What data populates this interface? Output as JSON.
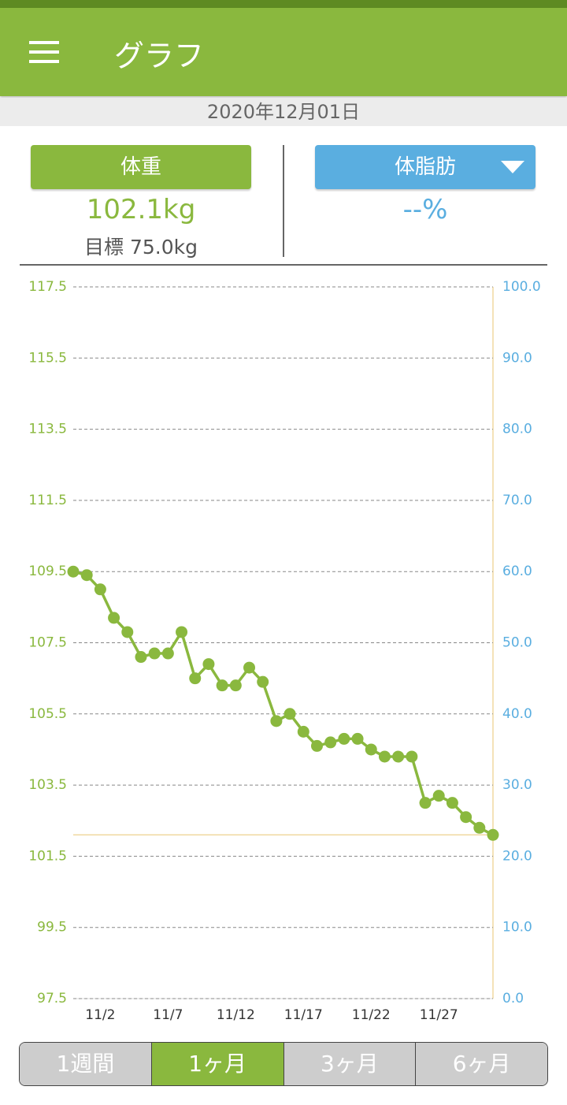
{
  "header": {
    "title": "グラフ"
  },
  "date": "2020年12月01日",
  "panels": [
    {
      "label": "体重",
      "value": "102.1kg",
      "goal": "目標 75.0kg"
    },
    {
      "label": "体脂肪",
      "value": "--%"
    }
  ],
  "chart_data": {
    "type": "line",
    "x": [
      0,
      1,
      2,
      3,
      4,
      5,
      6,
      7,
      8,
      9,
      10,
      11,
      12,
      13,
      14,
      15,
      16,
      17,
      18,
      19,
      20,
      21,
      22,
      23,
      24,
      25,
      26,
      27,
      28,
      29,
      30,
      31
    ],
    "values": [
      109.5,
      109.4,
      109.0,
      108.2,
      107.8,
      107.1,
      107.2,
      107.2,
      107.8,
      106.5,
      106.9,
      106.3,
      106.3,
      106.8,
      106.4,
      105.3,
      105.5,
      105.0,
      104.6,
      104.7,
      104.8,
      104.8,
      104.5,
      104.3,
      104.3,
      104.3,
      103.0,
      103.2,
      103.0,
      102.6,
      102.3,
      102.1
    ],
    "color": "#8ab83e",
    "markers": true,
    "xlim": [
      0,
      31
    ],
    "xticks": [
      {
        "value": 2,
        "label": "11/2"
      },
      {
        "value": 7,
        "label": "11/7"
      },
      {
        "value": 12,
        "label": "11/12"
      },
      {
        "value": 17,
        "label": "11/17"
      },
      {
        "value": 22,
        "label": "11/22"
      },
      {
        "value": 27,
        "label": "11/27"
      }
    ],
    "ylim": [
      97.5,
      117.5
    ],
    "yticks": [
      97.5,
      99.5,
      101.5,
      103.5,
      105.5,
      107.5,
      109.5,
      111.5,
      113.5,
      115.5,
      117.5
    ],
    "y2lim": [
      0,
      100
    ],
    "y2ticks": [
      {
        "value": 0,
        "label": "0.0"
      },
      {
        "value": 10,
        "label": "10.0"
      },
      {
        "value": 20,
        "label": "20.0"
      },
      {
        "value": 30,
        "label": "30.0"
      },
      {
        "value": 40,
        "label": "40.0"
      },
      {
        "value": 50,
        "label": "50.0"
      },
      {
        "value": 60,
        "label": "60.0"
      },
      {
        "value": 70,
        "label": "70.0"
      },
      {
        "value": 80,
        "label": "80.0"
      },
      {
        "value": 90,
        "label": "90.0"
      },
      {
        "value": 100,
        "label": "100.0"
      }
    ],
    "y_color": "#8ab83e",
    "y2_color": "#5aaee0",
    "reference_line": 102.1,
    "reference_color": "#f0d9a0",
    "grid": true
  },
  "tabs": [
    "1週間",
    "1ヶ月",
    "3ヶ月",
    "6ヶ月"
  ],
  "selected_tab": 1
}
